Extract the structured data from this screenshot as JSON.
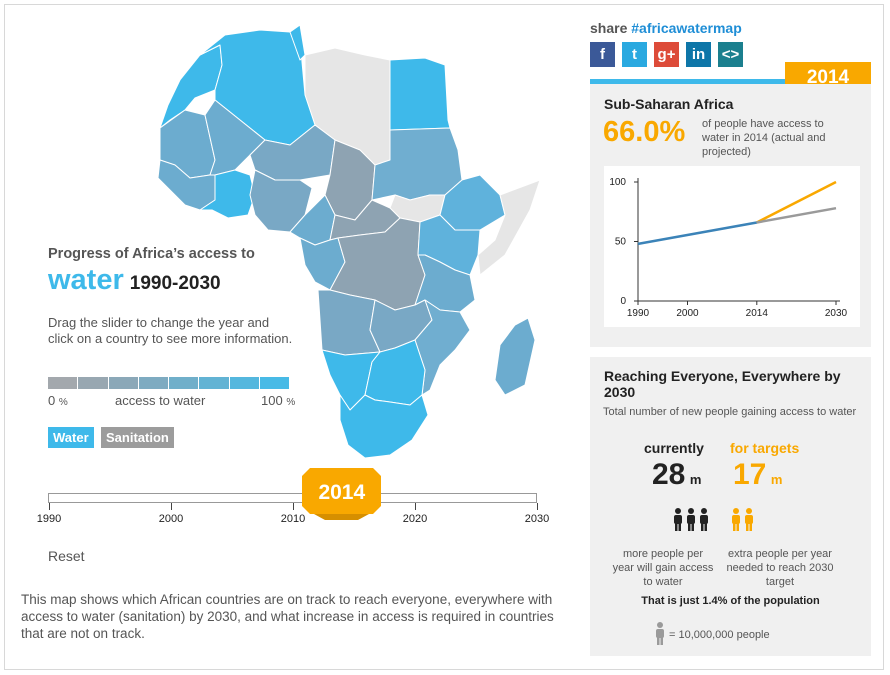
{
  "intro": {
    "title": "Progress of Africa’s access to",
    "headline_word": "water",
    "headline_years": "1990-2030",
    "instructions": "Drag the slider to change the year and click on a country to see more information."
  },
  "legend": {
    "min_label": "0",
    "min_unit": "%",
    "mid_label": "access to water",
    "max_label": "100",
    "max_unit": "%",
    "colors": [
      "#a3a8ad",
      "#98a7b1",
      "#8ba8b8",
      "#7eabc1",
      "#70afca",
      "#62b3d4",
      "#54b7de",
      "#48bae6"
    ]
  },
  "toggle": {
    "water_label": "Water",
    "sanitation_label": "Sanitation",
    "active": "water",
    "water_color": "#3eb9ea",
    "sanitation_color": "#9c9c9c"
  },
  "slider": {
    "ticks": [
      "1990",
      "2000",
      "2010",
      "2020",
      "2030"
    ],
    "selected_year": "2014",
    "min": 1990,
    "max": 2030,
    "value": 2014
  },
  "reset_label": "Reset",
  "footer_text": "This map shows which African countries are on track to reach everyone, everywhere with access to water (sanitation) by 2030, and what increase in access is required in countries that are not on track.",
  "share": {
    "label": "share",
    "hashtag": "#africawatermap",
    "buttons": [
      {
        "icon": "facebook-icon",
        "glyph": "f",
        "color": "#3b5998"
      },
      {
        "icon": "twitter-icon",
        "glyph": "t",
        "color": "#2aa9e0"
      },
      {
        "icon": "google-plus-icon",
        "glyph": "g+",
        "color": "#dd4b39"
      },
      {
        "icon": "linkedin-icon",
        "glyph": "in",
        "color": "#0e76a8"
      },
      {
        "icon": "embed-icon",
        "glyph": "<>",
        "color": "#1b7f8e"
      }
    ]
  },
  "region_panel": {
    "year": "2014",
    "region": "Sub-Saharan Africa",
    "percent": "66.0%",
    "description": "of people have access to water in 2014 (actual and projected)"
  },
  "chart_data": {
    "type": "line",
    "title": "",
    "xlabel": "",
    "ylabel": "",
    "x_ticks": [
      "1990",
      "2000",
      "2014",
      "2030"
    ],
    "y_ticks": [
      "0",
      "50",
      "100"
    ],
    "xlim": [
      1990,
      2030
    ],
    "ylim": [
      0,
      100
    ],
    "grid": false,
    "series": [
      {
        "x": [
          1990,
          2014
        ],
        "y": [
          48,
          66
        ],
        "color": "#3b83b8"
      },
      {
        "x": [
          2014,
          2030
        ],
        "y": [
          66,
          100
        ],
        "color": "#f9a800"
      },
      {
        "x": [
          2014,
          2030
        ],
        "y": [
          66,
          78
        ],
        "color": "#9a9a9a"
      }
    ]
  },
  "reach_panel": {
    "title": "Reaching Everyone, Everywhere by 2030",
    "subtitle": "Total number of new people gaining access to water",
    "current_label": "currently",
    "current_value": "28",
    "current_unit": "m",
    "current_desc": "more people per year will gain access to water",
    "target_label": "for targets",
    "target_value": "17",
    "target_unit": "m",
    "target_desc": "extra people per year needed to reach 2030 target",
    "population_note": "That is just 1.4% of the population",
    "key_text": "= 10,000,000 people",
    "current_color": "#222222",
    "target_color": "#f9a800",
    "key_color": "#9a9a9a"
  }
}
